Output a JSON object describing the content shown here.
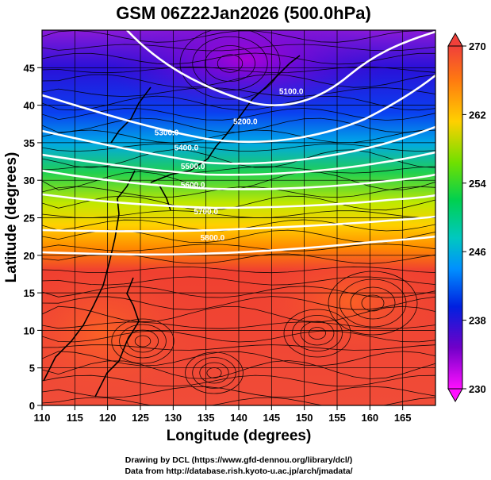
{
  "title": "GSM 06Z22Jan2026 (500.0hPa)",
  "map": {
    "xlabel": "Longitude (degrees)",
    "ylabel": "Latitude  (degrees)",
    "x_range": [
      110,
      170
    ],
    "y_range": [
      0,
      50
    ],
    "x_ticks": [
      "110",
      "115",
      "120",
      "125",
      "130",
      "135",
      "140",
      "145",
      "150",
      "155",
      "160",
      "165"
    ],
    "y_ticks": [
      "0",
      "5",
      "10",
      "15",
      "20",
      "25",
      "30",
      "35",
      "40",
      "45"
    ],
    "grid": true,
    "field": "temperature (shaded), geopotential height (contours), wind (streamlines)"
  },
  "colorbar": {
    "min": 230,
    "max": 270,
    "labels": [
      "270",
      "262",
      "254",
      "246",
      "238",
      "230"
    ],
    "colors": [
      "#e3d000",
      "#ff1a00",
      "#ff7a00",
      "#ffd200",
      "#7fe000",
      "#00d040",
      "#00c8b0",
      "#0090ff",
      "#0020e0",
      "#7000c0",
      "#ff00ff"
    ]
  },
  "contours": [
    {
      "label": "5100.0",
      "lon": 148,
      "lat": 41.5
    },
    {
      "label": "5200.0",
      "lon": 141,
      "lat": 37.5
    },
    {
      "label": "5300.0",
      "lon": 129,
      "lat": 36.0
    },
    {
      "label": "5400.0",
      "lon": 132,
      "lat": 34.0
    },
    {
      "label": "5500.0",
      "lon": 133,
      "lat": 31.5
    },
    {
      "label": "5600.0",
      "lon": 133,
      "lat": 29.0
    },
    {
      "label": "5700.0",
      "lon": 135,
      "lat": 25.5
    },
    {
      "label": "5800.0",
      "lon": 136,
      "lat": 22.0
    }
  ],
  "credits": {
    "line1": "Drawing by DCL (https://www.gfd-dennou.org/library/dcl/)",
    "line2": "Data from http://database.rish.kyoto-u.ac.jp/arch/jmadata/"
  }
}
